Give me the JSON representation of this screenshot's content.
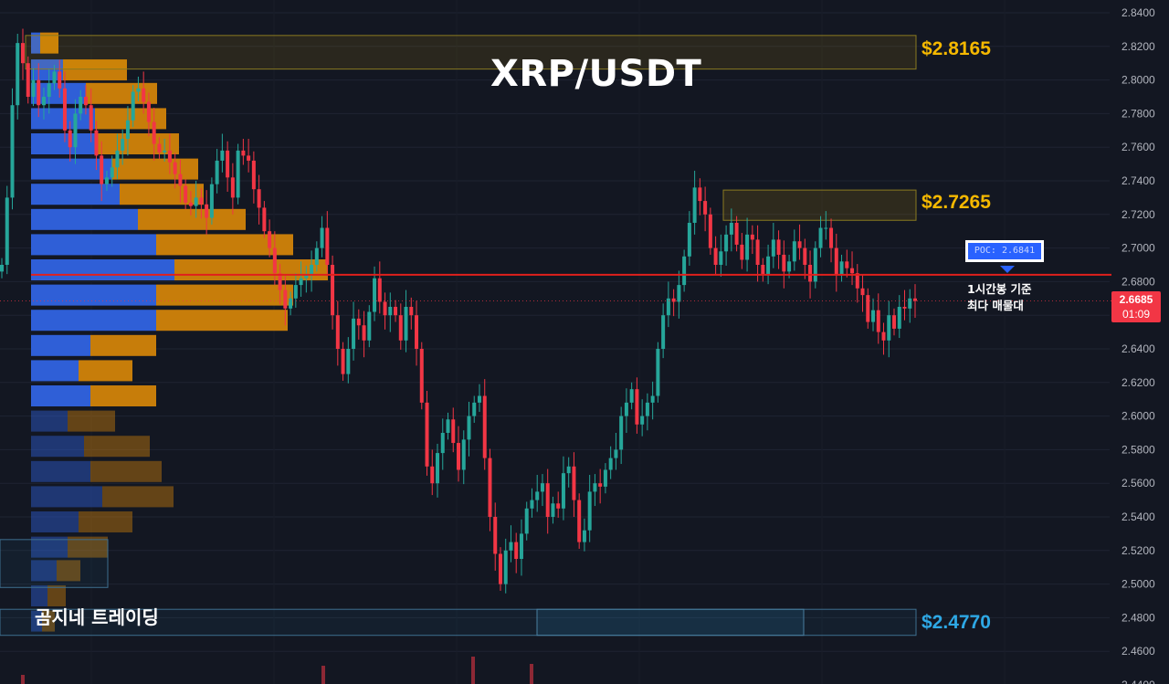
{
  "title": "XRP/USDT",
  "watermark": "곰지네 트레이딩",
  "zones": [
    {
      "label": "$2.8165",
      "price": 2.8165,
      "color": "#f5b800"
    },
    {
      "label": "$2.7265",
      "price": 2.7265,
      "color": "#f5b800"
    },
    {
      "label": "$2.4770",
      "price": 2.477,
      "color": "#2ea8e5"
    }
  ],
  "poc": {
    "label": "POC: 2.6841",
    "price": 2.6841,
    "note_line1": "1시간봉 기준",
    "note_line2": "최다 매물대"
  },
  "current_price": {
    "value": "2.6685",
    "countdown": "01:09"
  },
  "colors": {
    "up": "#26a69a",
    "down": "#f23645",
    "buy_volume": "#2f5fd7",
    "sell_volume": "#c77d0a",
    "background": "#131722"
  },
  "chart_data": {
    "type": "candlestick",
    "title": "XRP/USDT",
    "y_axis": {
      "min": 2.44,
      "max": 2.84,
      "step": 0.02,
      "tick_labels": [
        "2.8400",
        "2.8200",
        "2.8000",
        "2.7800",
        "2.7600",
        "2.7400",
        "2.7200",
        "2.7000",
        "2.6800",
        "2.6600",
        "2.6400",
        "2.6200",
        "2.6000",
        "2.5800",
        "2.5600",
        "2.5400",
        "2.5200",
        "2.5000",
        "2.4800",
        "2.4600",
        "2.4400"
      ]
    },
    "close_series": [
      2.69,
      2.73,
      2.785,
      2.822,
      2.81,
      2.79,
      2.8,
      2.785,
      2.79,
      2.798,
      2.805,
      2.795,
      2.77,
      2.76,
      2.78,
      2.79,
      2.785,
      2.77,
      2.755,
      2.738,
      2.742,
      2.748,
      2.758,
      2.765,
      2.776,
      2.793,
      2.795,
      2.787,
      2.775,
      2.762,
      2.757,
      2.758,
      2.751,
      2.744,
      2.737,
      2.727,
      2.725,
      2.73,
      2.726,
      2.718,
      2.738,
      2.752,
      2.758,
      2.742,
      2.73,
      2.758,
      2.755,
      2.752,
      2.735,
      2.724,
      2.71,
      2.7,
      2.685,
      2.675,
      2.664,
      2.67,
      2.678,
      2.682,
      2.684,
      2.69,
      2.7,
      2.712,
      2.69,
      2.66,
      2.64,
      2.625,
      2.64,
      2.658,
      2.654,
      2.645,
      2.662,
      2.682,
      2.668,
      2.66,
      2.665,
      2.66,
      2.645,
      2.665,
      2.66,
      2.64,
      2.608,
      2.57,
      2.56,
      2.578,
      2.59,
      2.598,
      2.584,
      2.568,
      2.586,
      2.6,
      2.608,
      2.612,
      2.575,
      2.54,
      2.518,
      2.5,
      2.52,
      2.525,
      2.515,
      2.53,
      2.545,
      2.55,
      2.555,
      2.56,
      2.54,
      2.548,
      2.545,
      2.566,
      2.57,
      2.55,
      2.525,
      2.532,
      2.555,
      2.56,
      2.558,
      2.568,
      2.575,
      2.58,
      2.6,
      2.608,
      2.616,
      2.595,
      2.6,
      2.608,
      2.612,
      2.64,
      2.66,
      2.67,
      2.668,
      2.678,
      2.695,
      2.715,
      2.736,
      2.728,
      2.72,
      2.7,
      2.69,
      2.698,
      2.708,
      2.715,
      2.702,
      2.693,
      2.708,
      2.705,
      2.69,
      2.684,
      2.695,
      2.705,
      2.696,
      2.686,
      2.692,
      2.704,
      2.7,
      2.69,
      2.68,
      2.7,
      2.712,
      2.712,
      2.7,
      2.684,
      2.692,
      2.688,
      2.685,
      2.676,
      2.672,
      2.656,
      2.663,
      2.65,
      2.645,
      2.66,
      2.652,
      2.665,
      2.664,
      2.67,
      2.6685
    ],
    "volume_profile": [
      {
        "price": 2.822,
        "buy": 10,
        "sell": 20
      },
      {
        "price": 2.806,
        "buy": 35,
        "sell": 70
      },
      {
        "price": 2.792,
        "buy": 60,
        "sell": 78
      },
      {
        "price": 2.777,
        "buy": 70,
        "sell": 78
      },
      {
        "price": 2.762,
        "buy": 70,
        "sell": 92
      },
      {
        "price": 2.747,
        "buy": 88,
        "sell": 95
      },
      {
        "price": 2.732,
        "buy": 97,
        "sell": 92
      },
      {
        "price": 2.717,
        "buy": 117,
        "sell": 118
      },
      {
        "price": 2.702,
        "buy": 137,
        "sell": 150
      },
      {
        "price": 2.687,
        "buy": 157,
        "sell": 168
      },
      {
        "price": 2.672,
        "buy": 137,
        "sell": 150
      },
      {
        "price": 2.657,
        "buy": 137,
        "sell": 144
      },
      {
        "price": 2.642,
        "buy": 65,
        "sell": 72
      },
      {
        "price": 2.627,
        "buy": 52,
        "sell": 59
      },
      {
        "price": 2.612,
        "buy": 65,
        "sell": 72
      },
      {
        "price": 2.597,
        "buy": 40,
        "sell": 52
      },
      {
        "price": 2.582,
        "buy": 58,
        "sell": 72
      },
      {
        "price": 2.567,
        "buy": 65,
        "sell": 78
      },
      {
        "price": 2.552,
        "buy": 78,
        "sell": 78
      },
      {
        "price": 2.537,
        "buy": 52,
        "sell": 59
      },
      {
        "price": 2.522,
        "buy": 40,
        "sell": 44
      },
      {
        "price": 2.508,
        "buy": 28,
        "sell": 26
      },
      {
        "price": 2.493,
        "buy": 18,
        "sell": 20
      },
      {
        "price": 2.478,
        "buy": 12,
        "sell": 14
      }
    ]
  }
}
